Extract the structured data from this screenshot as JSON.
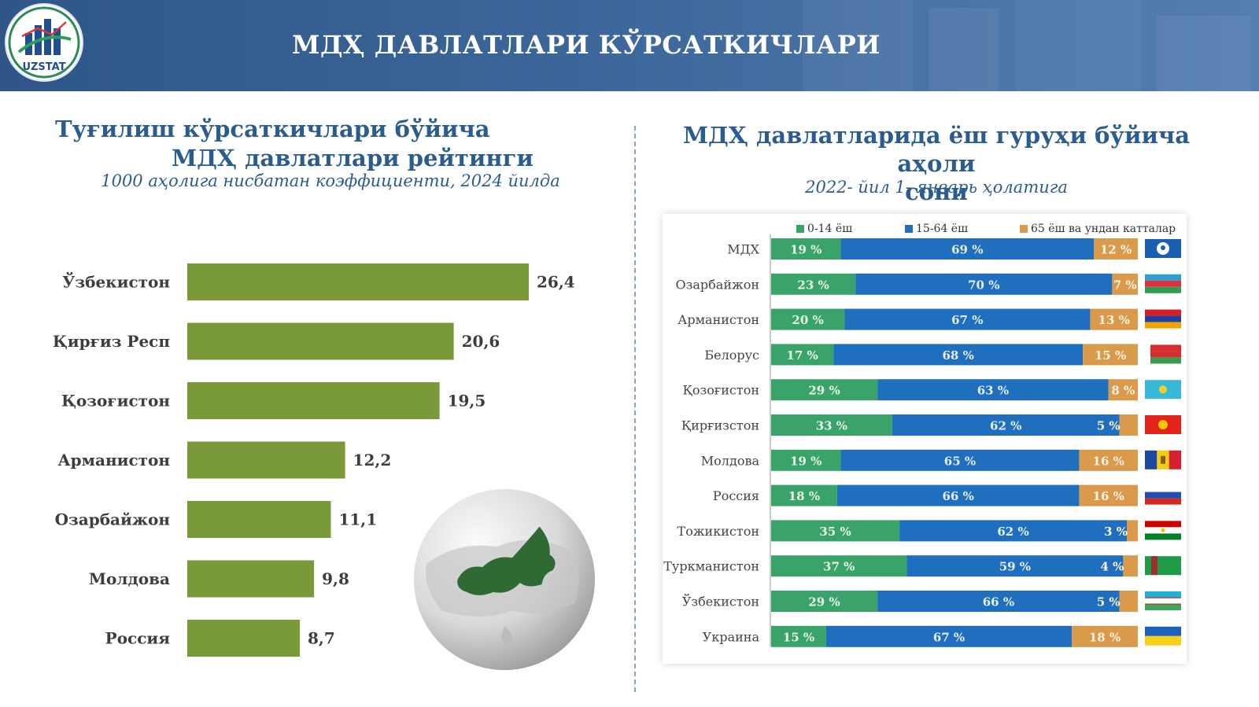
{
  "header": {
    "title": "МДҲ ДАВЛАТЛАРИ КЎРСАТКИЧЛАРИ",
    "logo_text": "UZSTAT"
  },
  "colors": {
    "header_blue": "#3b6497",
    "title_blue": "#2b5c8f",
    "bar_green": "#7a9a3a",
    "age_0_14": "#3aa36a",
    "age_15_64": "#1f6fbe",
    "age_65_plus": "#d99a4c"
  },
  "chart_data": [
    {
      "type": "bar",
      "orientation": "horizontal",
      "title": "Туғилиш кўрсаткичлари бўйича МДҲ давлатлари рейтинги",
      "subtitle": "1000 аҳолига нисбатан коэффициенти, 2024 йилда",
      "title_line1": "Туғилиш кўрсаткичлари бўйича",
      "title_line2": "МДҲ давлатлари рейтинги",
      "categories": [
        "Ўзбекистон",
        "Қирғиз Респ",
        "Қозоғистон",
        "Арманистон",
        "Озарбайжон",
        "Молдова",
        "Россия"
      ],
      "values": [
        26.4,
        20.6,
        19.5,
        12.2,
        11.1,
        9.8,
        8.7
      ],
      "data_labels": [
        "26,4",
        "20,6",
        "19,5",
        "12,2",
        "11,1",
        "9,8",
        "8,7"
      ],
      "color": "#7a9a3a",
      "grid": false
    },
    {
      "type": "bar",
      "orientation": "horizontal",
      "stacked": "percent",
      "title": "МДҲ давлатларида ёш гуруҳи бўйича аҳоли сони",
      "subtitle": "2022- йил 1- январь ҳолатига",
      "title_line1": "МДҲ давлатларида ёш гуруҳи бўйича аҳоли",
      "title_line2": "сони",
      "legend_position": "top",
      "categories": [
        "МДХ",
        "Озарбайжон",
        "Арманистон",
        "Белорус",
        "Қозоғистон",
        "Қирғизстон",
        "Молдова",
        "Россия",
        "Тожикистон",
        "Туркманистон",
        "Ўзбекистон",
        "Украина"
      ],
      "series": [
        {
          "name": "0-14 ёш",
          "color": "#3aa36a",
          "values": [
            19,
            23,
            20,
            17,
            29,
            33,
            19,
            18,
            35,
            37,
            29,
            15
          ],
          "labels": [
            "19 %",
            "23 %",
            "20 %",
            "17 %",
            "29 %",
            "33 %",
            "19 %",
            "18 %",
            "35 %",
            "37 %",
            "29 %",
            "15 %"
          ]
        },
        {
          "name": "15-64 ёш",
          "color": "#1f6fbe",
          "values": [
            69,
            70,
            67,
            68,
            63,
            62,
            65,
            66,
            62,
            59,
            66,
            67
          ],
          "labels": [
            "69 %",
            "70 %",
            "67 %",
            "68 %",
            "63 %",
            "62 %",
            "65 %",
            "66 %",
            "62 %",
            "59 %",
            "66 %",
            "67 %"
          ]
        },
        {
          "name": "65 ёш ва ундан катталар",
          "color": "#d99a4c",
          "values": [
            12,
            7,
            13,
            15,
            8,
            5,
            16,
            16,
            3,
            4,
            5,
            18
          ],
          "labels": [
            "12 %",
            "7 %",
            "13 %",
            "15 %",
            "8 %",
            "5 %",
            "16 %",
            "16 %",
            "3 %",
            "4 %",
            "5 %",
            "18 %"
          ]
        }
      ],
      "flag_icons": [
        "cis-flag-icon",
        "azerbaijan-flag-icon",
        "armenia-flag-icon",
        "belarus-flag-icon",
        "kazakhstan-flag-icon",
        "kyrgyzstan-flag-icon",
        "moldova-flag-icon",
        "russia-flag-icon",
        "tajikistan-flag-icon",
        "turkmenistan-flag-icon",
        "uzbekistan-flag-icon",
        "ukraine-flag-icon"
      ]
    }
  ]
}
